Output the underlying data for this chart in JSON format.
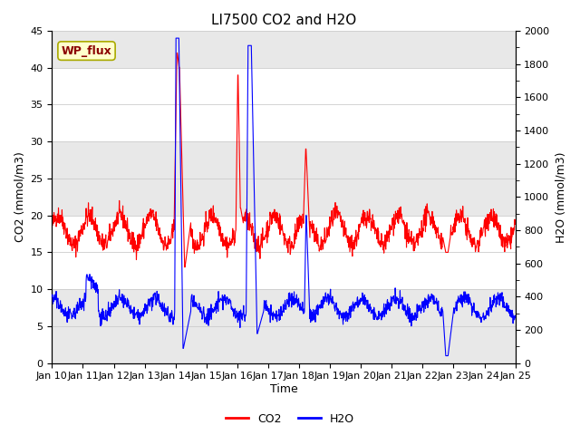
{
  "title": "LI7500 CO2 and H2O",
  "xlabel": "Time",
  "ylabel_left": "CO2 (mmol/m3)",
  "ylabel_right": "H2O (mmol/m3)",
  "ylim_left": [
    0,
    45
  ],
  "ylim_right": [
    0,
    2000
  ],
  "x_tick_labels": [
    "Jan 10",
    "Jan 11",
    "Jan 12",
    "Jan 13",
    "Jan 14",
    "Jan 15",
    "Jan 16",
    "Jan 17",
    "Jan 18",
    "Jan 19",
    "Jan 20",
    "Jan 21",
    "Jan 22",
    "Jan 23",
    "Jan 24",
    "Jan 25"
  ],
  "annotation_text": "WP_flux",
  "annotation_color": "#8B0000",
  "annotation_bg": "#FFFFCC",
  "annotation_edge": "#AAAA00",
  "co2_color": "#FF0000",
  "h2o_color": "#0000FF",
  "bg_color": "#FFFFFF",
  "grid_color": "#CCCCCC",
  "band_color": "#E8E8E8",
  "title_fontsize": 11,
  "label_fontsize": 9,
  "tick_fontsize": 8,
  "legend_fontsize": 9,
  "linewidth": 0.8
}
